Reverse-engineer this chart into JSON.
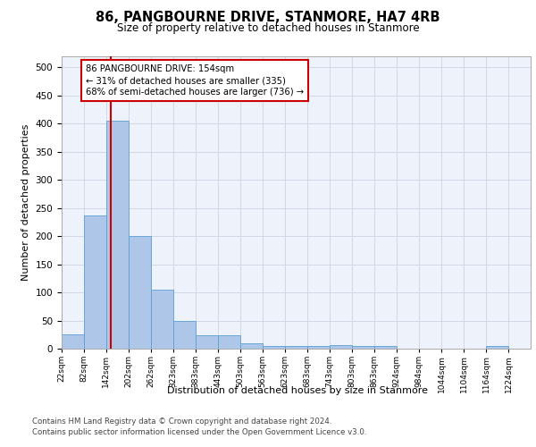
{
  "title": "86, PANGBOURNE DRIVE, STANMORE, HA7 4RB",
  "subtitle": "Size of property relative to detached houses in Stanmore",
  "xlabel": "Distribution of detached houses by size in Stanmore",
  "ylabel": "Number of detached properties",
  "bar_color": "#aec6e8",
  "bar_edge_color": "#5a9fd4",
  "bin_edges": [
    22,
    82,
    142,
    202,
    262,
    323,
    383,
    443,
    503,
    563,
    623,
    683,
    743,
    803,
    863,
    924,
    984,
    1044,
    1104,
    1164,
    1224
  ],
  "bin_labels": [
    "22sqm",
    "82sqm",
    "142sqm",
    "202sqm",
    "262sqm",
    "323sqm",
    "383sqm",
    "443sqm",
    "503sqm",
    "563sqm",
    "623sqm",
    "683sqm",
    "743sqm",
    "803sqm",
    "863sqm",
    "924sqm",
    "984sqm",
    "1044sqm",
    "1104sqm",
    "1164sqm",
    "1224sqm"
  ],
  "bar_heights": [
    25,
    237,
    405,
    200,
    105,
    49,
    24,
    24,
    10,
    5,
    5,
    5,
    7,
    5,
    5,
    0,
    0,
    0,
    0,
    5
  ],
  "ylim": [
    0,
    520
  ],
  "yticks": [
    0,
    50,
    100,
    150,
    200,
    250,
    300,
    350,
    400,
    450,
    500
  ],
  "property_line_x": 154,
  "annotation_line1": "86 PANGBOURNE DRIVE: 154sqm",
  "annotation_line2": "← 31% of detached houses are smaller (335)",
  "annotation_line3": "68% of semi-detached houses are larger (736) →",
  "red_line_color": "#cc0000",
  "footer_line1": "Contains HM Land Registry data © Crown copyright and database right 2024.",
  "footer_line2": "Contains public sector information licensed under the Open Government Licence v3.0.",
  "grid_color": "#d0d8e8",
  "bg_color": "#eef2fa"
}
